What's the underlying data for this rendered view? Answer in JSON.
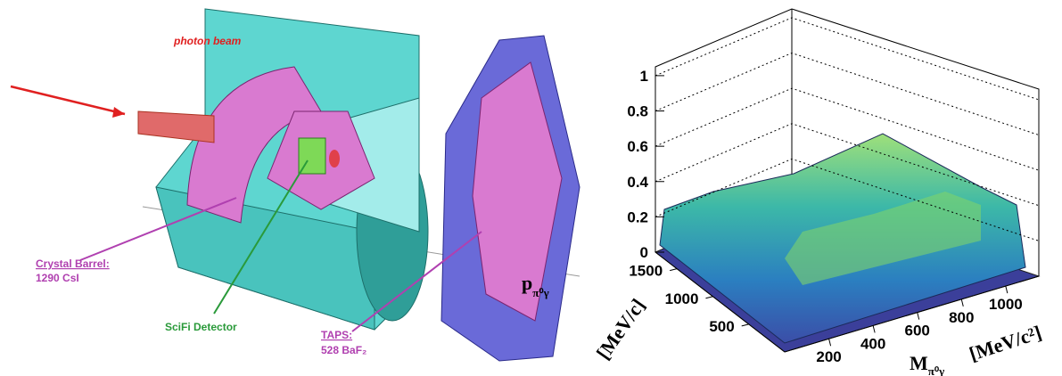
{
  "detector": {
    "beam_label": "photon beam",
    "barrel_title": "Crystal Barrel:",
    "barrel_detail": "1290 CsI",
    "scifi_label": "SciFi Detector",
    "taps_title": "TAPS:",
    "taps_detail": "528 BaF₂"
  },
  "plot": {
    "zticks": [
      0,
      0.2,
      0.4,
      0.6,
      0.8,
      1
    ],
    "zlim": [
      0,
      1.05
    ],
    "yticks": [
      500,
      1000,
      1500
    ],
    "ylim": [
      0,
      1800
    ],
    "xticks": [
      200,
      400,
      600,
      800,
      1000
    ],
    "xlim": [
      0,
      1150
    ],
    "xlabel": {
      "main": "M",
      "sub": "π⁰γ",
      "unit": "[MeV/c²]"
    },
    "ylabel": {
      "main": "p",
      "sub": "π⁰γ",
      "unit": "[MeV/c]"
    }
  }
}
